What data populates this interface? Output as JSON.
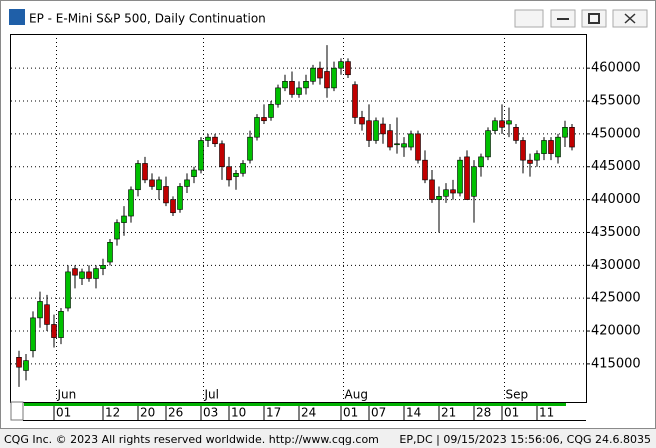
{
  "window": {
    "title": "EP - E-Mini S&P 500, Daily Continuation"
  },
  "chart_data": {
    "type": "candlestick",
    "categories": [
      null,
      null,
      null,
      null,
      null,
      null,
      "01",
      null,
      null,
      null,
      null,
      null,
      null,
      "12",
      null,
      null,
      null,
      null,
      "20",
      null,
      null,
      null,
      "26",
      null,
      null,
      null,
      null,
      "03",
      null,
      null,
      null,
      "10",
      null,
      null,
      null,
      null,
      "17",
      null,
      null,
      null,
      null,
      "24",
      null,
      null,
      null,
      null,
      null,
      "01",
      null,
      null,
      null,
      "07",
      null,
      null,
      null,
      null,
      "14",
      null,
      null,
      null,
      null,
      "21",
      null,
      null,
      null,
      null,
      "28",
      null,
      null,
      null,
      "01",
      null,
      null,
      null,
      null,
      "11",
      null,
      null,
      null,
      null
    ],
    "months": [
      null,
      null,
      null,
      null,
      null,
      null,
      "Jun",
      null,
      null,
      null,
      null,
      null,
      null,
      null,
      null,
      null,
      null,
      null,
      null,
      null,
      null,
      null,
      null,
      null,
      null,
      null,
      null,
      "Jul",
      null,
      null,
      null,
      null,
      null,
      null,
      null,
      null,
      null,
      null,
      null,
      null,
      null,
      null,
      null,
      null,
      null,
      null,
      null,
      "Aug",
      null,
      null,
      null,
      null,
      null,
      null,
      null,
      null,
      null,
      null,
      null,
      null,
      null,
      null,
      null,
      null,
      null,
      null,
      null,
      null,
      null,
      null,
      "Sep",
      null,
      null,
      null,
      null,
      null,
      null,
      null,
      null,
      null
    ],
    "open": [
      416000,
      414000,
      417000,
      422000,
      424000,
      421000,
      419000,
      423500,
      429500,
      428000,
      429000,
      428000,
      429500,
      430500,
      434000,
      436500,
      437500,
      441500,
      445500,
      443000,
      441500,
      442000,
      440000,
      438500,
      442000,
      443500,
      444500,
      449000,
      449500,
      448500,
      445000,
      443500,
      444000,
      446000,
      449500,
      452500,
      452500,
      454500,
      457000,
      458000,
      456000,
      457000,
      458000,
      460000,
      459500,
      457000,
      460000,
      461000,
      457500,
      452500,
      452000,
      449000,
      451500,
      450500,
      448500,
      448000,
      448000,
      450000,
      446000,
      443000,
      440000,
      440500,
      441500,
      441000,
      446500,
      440500,
      445000,
      446500,
      450500,
      452000,
      451500,
      451000,
      449000,
      446000,
      446000,
      447000,
      449000,
      446500,
      449500,
      451000
    ],
    "high": [
      417000,
      416500,
      423000,
      426000,
      425500,
      422500,
      423500,
      430000,
      430000,
      429500,
      430000,
      430000,
      431000,
      434000,
      437000,
      439000,
      442000,
      446000,
      446500,
      444000,
      443500,
      443500,
      440500,
      442500,
      444000,
      445000,
      449500,
      450000,
      450000,
      449000,
      446500,
      444500,
      446000,
      450500,
      453000,
      454500,
      455000,
      457500,
      459000,
      459500,
      458000,
      459000,
      460500,
      461000,
      463500,
      461000,
      461500,
      461500,
      458000,
      453500,
      454500,
      452500,
      452500,
      451500,
      452500,
      449500,
      450500,
      450500,
      447500,
      444500,
      442000,
      442500,
      443000,
      446500,
      447500,
      446000,
      447000,
      451000,
      452500,
      454500,
      454000,
      451500,
      449500,
      447000,
      447500,
      449500,
      449500,
      450000,
      452000,
      451500
    ],
    "low": [
      411500,
      412500,
      416000,
      420500,
      420000,
      417500,
      418000,
      423000,
      426500,
      427000,
      427500,
      426500,
      428500,
      430000,
      433000,
      434500,
      436500,
      440500,
      442500,
      441500,
      440000,
      439000,
      437500,
      438000,
      441000,
      442500,
      444000,
      448000,
      448000,
      443000,
      442000,
      441500,
      443500,
      445500,
      449000,
      451500,
      452000,
      454000,
      456500,
      455500,
      455500,
      456000,
      457500,
      457500,
      455500,
      456500,
      459000,
      458500,
      451500,
      450500,
      448000,
      448500,
      448500,
      447500,
      447000,
      446500,
      447500,
      445500,
      442500,
      439500,
      435000,
      439500,
      440000,
      440500,
      440000,
      436500,
      443500,
      446000,
      450000,
      450000,
      449500,
      448500,
      444000,
      443500,
      445000,
      446000,
      446000,
      445500,
      448000,
      447500
    ],
    "close": [
      414500,
      415500,
      422000,
      424500,
      421000,
      419000,
      423000,
      429000,
      428500,
      429000,
      428000,
      429500,
      430000,
      433500,
      436500,
      437500,
      441500,
      445500,
      443000,
      442000,
      443000,
      439500,
      438000,
      442000,
      443000,
      444500,
      449000,
      449500,
      448500,
      445000,
      443000,
      444000,
      445500,
      449500,
      452500,
      452000,
      454500,
      457000,
      458000,
      456000,
      457000,
      458000,
      460000,
      458500,
      457000,
      460000,
      461000,
      459000,
      452500,
      451500,
      449000,
      452000,
      450000,
      448000,
      448500,
      448500,
      450000,
      446000,
      443000,
      440000,
      440500,
      441500,
      441000,
      446000,
      440000,
      445000,
      446500,
      450500,
      452000,
      451000,
      452000,
      449000,
      446000,
      445500,
      447000,
      449000,
      447000,
      449500,
      451000,
      448000
    ],
    "up_color": "#00c000",
    "down_color": "#c00000",
    "ylim": [
      409200,
      465200
    ],
    "yticks": [
      415000,
      420000,
      425000,
      430000,
      435000,
      440000,
      445000,
      450000,
      455000,
      460000
    ],
    "grid": true
  },
  "footer": {
    "left": "CQG Inc. © 2023 All rights reserved worldwide. http://www.cqg.com",
    "right": "EP,DC | 09/15/2023 15:56:06, CQG 24.6.8035"
  }
}
